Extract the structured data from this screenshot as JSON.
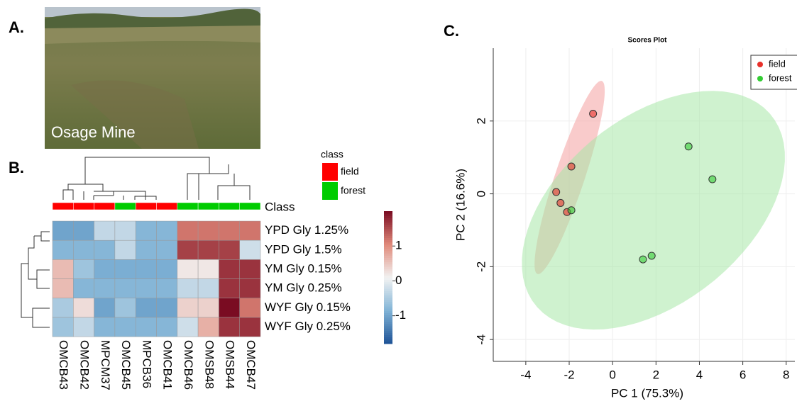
{
  "panel_labels": [
    "A.",
    "B.",
    "C."
  ],
  "photo": {
    "caption": "Osage Mine"
  },
  "chart_data": [
    {
      "type": "heatmap",
      "columns": [
        "OMCB43",
        "OMCB42",
        "MPCM37",
        "OMCB45",
        "MPCB36",
        "OMCB41",
        "OMCB46",
        "OMSB48",
        "OMSB44",
        "OMCB47"
      ],
      "rows": [
        "YPD Gly 1.25%",
        "YPD Gly 1.5%",
        "YM Gly 0.15%",
        "YM Gly 0.25%",
        "WYF Gly 0.15%",
        "WYF Gly 0.25%"
      ],
      "values": [
        [
          -1.0,
          -1.0,
          -0.3,
          -0.3,
          -0.8,
          -0.8,
          1.2,
          1.2,
          1.2,
          1.2
        ],
        [
          -0.8,
          -0.8,
          -0.8,
          -0.3,
          -0.8,
          -0.8,
          1.6,
          1.6,
          1.6,
          -0.2
        ],
        [
          0.6,
          -0.6,
          -0.9,
          -0.9,
          -0.9,
          -0.9,
          0.2,
          0.2,
          1.7,
          1.7
        ],
        [
          0.6,
          -0.8,
          -0.8,
          -0.8,
          -0.8,
          -0.8,
          -0.3,
          -0.3,
          1.7,
          1.7
        ],
        [
          -0.5,
          0.3,
          -1.0,
          -0.6,
          -1.0,
          -1.0,
          0.4,
          0.4,
          2.0,
          1.2
        ],
        [
          -0.6,
          -0.3,
          -0.8,
          -0.8,
          -0.8,
          -0.8,
          -0.2,
          0.7,
          1.7,
          1.7
        ]
      ],
      "class_label": "Class",
      "column_classes": [
        "field",
        "field",
        "field",
        "forest",
        "field",
        "field",
        "forest",
        "forest",
        "forest",
        "forest"
      ],
      "legend_title": "class",
      "classes": [
        {
          "name": "field",
          "color": "#ff0000"
        },
        {
          "name": "forest",
          "color": "#00cc00"
        }
      ],
      "colormap": [
        "#1d5296",
        "#80b3d6",
        "#f2f2f2",
        "#e0897a",
        "#7a0c22"
      ],
      "clim": [
        -1.8,
        2.0
      ],
      "colorbar_ticks": [
        -1,
        0,
        1
      ]
    },
    {
      "type": "scatter",
      "title": "Scores Plot",
      "xlabel": "PC 1 (75.3%)",
      "ylabel": "PC 2 (16.6%)",
      "xlim": [
        -5.5,
        8.4
      ],
      "ylim": [
        -4.6,
        4.0
      ],
      "xticks": [
        -4,
        -2,
        0,
        2,
        4,
        6,
        8
      ],
      "yticks": [
        -4,
        -2,
        0,
        2
      ],
      "grid": true,
      "legend": "upper right",
      "series": [
        {
          "name": "field",
          "color": "#e8302a",
          "fill": "#f4a0a0",
          "x": [
            -0.9,
            -1.9,
            -2.6,
            -2.4,
            -2.1
          ],
          "y": [
            2.2,
            0.75,
            0.05,
            -0.25,
            -0.5
          ]
        },
        {
          "name": "forest",
          "color": "#33cc33",
          "fill": "#a8e8a8",
          "x": [
            3.5,
            4.6,
            -1.9,
            1.8,
            1.4
          ],
          "y": [
            1.3,
            0.4,
            -0.45,
            -1.7,
            -1.8
          ]
        }
      ]
    }
  ]
}
